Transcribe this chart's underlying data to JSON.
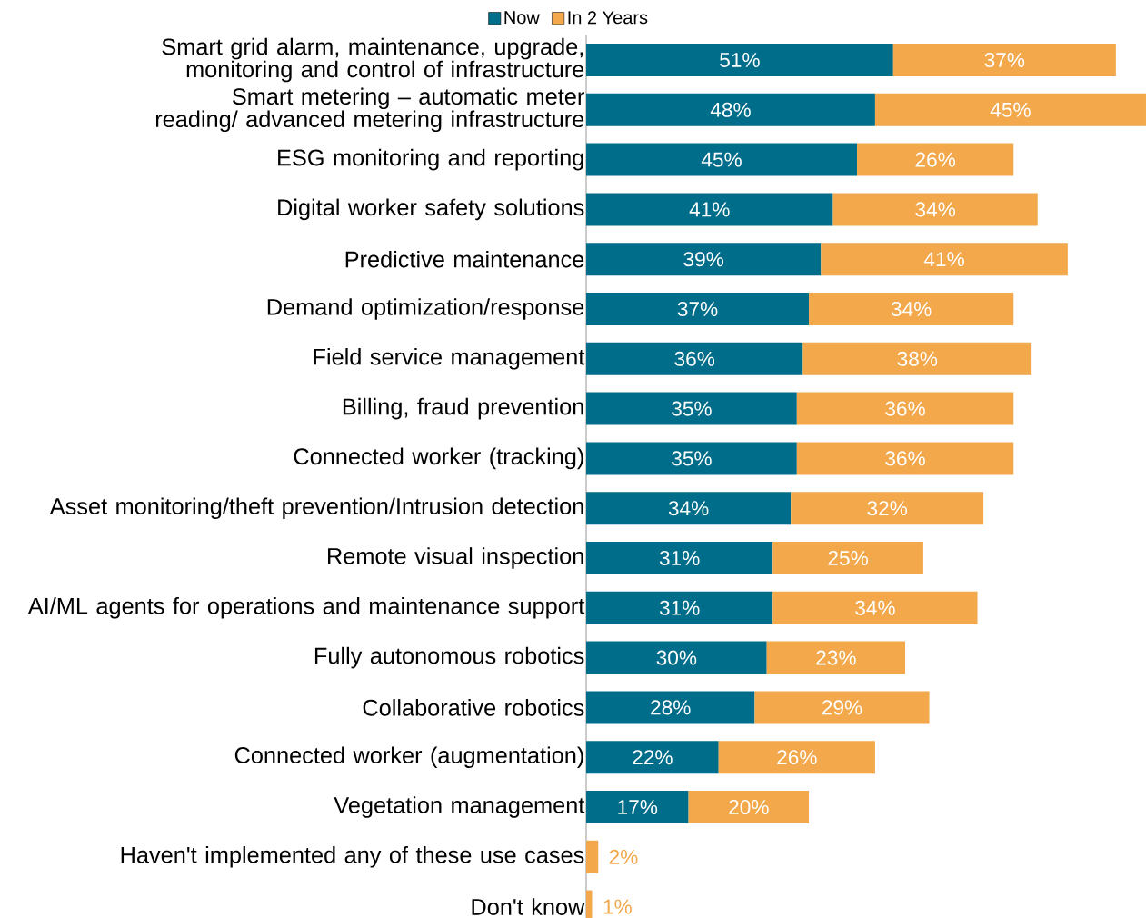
{
  "chart_data": {
    "type": "bar",
    "orientation": "horizontal",
    "stacked": true,
    "legend": "top",
    "categories": [
      "Smart grid alarm, maintenance, upgrade, monitoring and control of infrastructure",
      "Smart metering – automatic meter reading/ advanced metering infrastructure",
      "ESG monitoring and reporting",
      "Digital worker safety solutions",
      "Predictive maintenance",
      "Demand optimization/response",
      "Field service management",
      "Billing, fraud prevention",
      "Connected worker (tracking)",
      "Asset monitoring/theft prevention/Intrusion detection",
      "Remote visual inspection",
      "AI/ML agents for operations and maintenance support",
      "Fully autonomous robotics",
      "Collaborative robotics",
      "Connected worker (augmentation)",
      "Vegetation management",
      "Haven't implemented any of these use cases",
      "Don't know"
    ],
    "series": [
      {
        "name": "Now",
        "color": "#006e8a",
        "values": [
          51,
          48,
          45,
          41,
          39,
          37,
          36,
          35,
          35,
          34,
          31,
          31,
          30,
          28,
          22,
          17,
          null,
          null
        ],
        "value_labels": [
          "51%",
          "48%",
          "45%",
          "41%",
          "39%",
          "37%",
          "36%",
          "35%",
          "35%",
          "34%",
          "31%",
          "31%",
          "30%",
          "28%",
          "22%",
          "17%",
          null,
          null
        ]
      },
      {
        "name": "In 2 Years",
        "color": "#f2a84b",
        "values": [
          37,
          45,
          26,
          34,
          41,
          34,
          38,
          36,
          36,
          32,
          25,
          34,
          23,
          29,
          26,
          20,
          2,
          1
        ],
        "value_labels": [
          "37%",
          "45%",
          "26%",
          "34%",
          "41%",
          "34%",
          "38%",
          "36%",
          "36%",
          "32%",
          "25%",
          "34%",
          "23%",
          "29%",
          "26%",
          "20%",
          "2%",
          "1%"
        ]
      }
    ]
  }
}
